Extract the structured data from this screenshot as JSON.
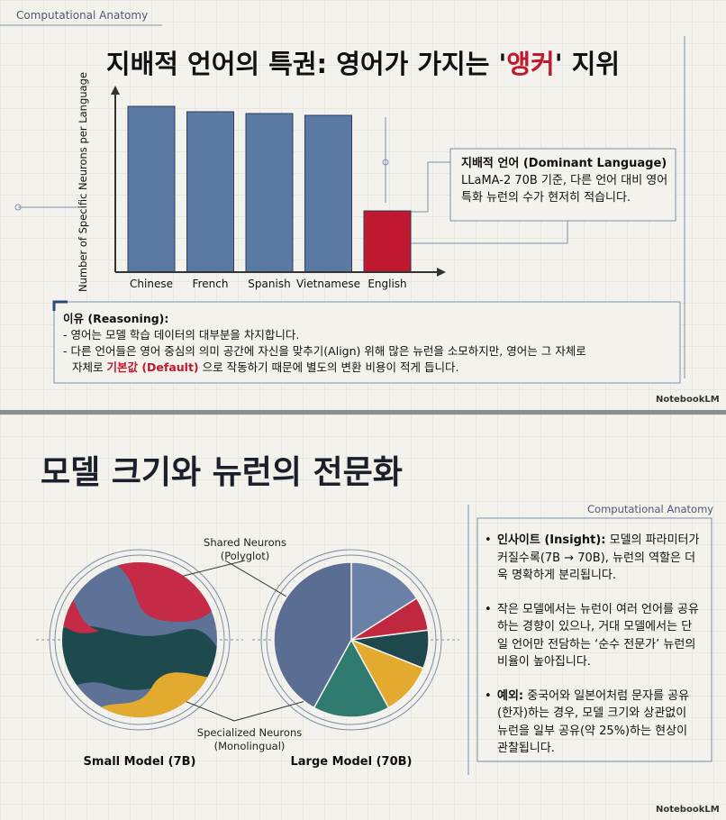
{
  "slide1": {
    "tag": "Computational Anatomy",
    "title": {
      "before": "지배적 언어의 특권: 영어가 가지는 '",
      "highlight": "앵커",
      "after": "' 지위"
    },
    "callout": {
      "heading": "지배적 언어 (Dominant Language)",
      "body": "LLaMA-2 70B 기준, 다른 언어 대비 영어 특화 뉴런의 수가 현저히 적습니다."
    },
    "reasoning": {
      "heading": "이유 (Reasoning):",
      "lines": [
        "- 영어는 모델 학습 데이터의 대부분을 차지합니다.",
        "- 다른 언어들은 영어 중심의 의미 공간에 자신을 맞추기(Align) 위해 많은 뉴런을 소모하지만, 영어는 그 자체로"
      ],
      "last": {
        "before": "자체로 ",
        "highlight": "기본값 (Default)",
        "after": " 으로 작동하기 때문에 별도의 변환 비용이 적게 듭니다."
      }
    },
    "brand": "NotebookLM"
  },
  "slide2": {
    "title": "모델 크기와 뉴런의 전문화",
    "tag": "Computational Anatomy",
    "shared_label": [
      "Shared Neurons",
      "(Polyglot)"
    ],
    "specialized_label": [
      "Specialized Neurons",
      "(Monolingual)"
    ],
    "small_caption": "Small Model (7B)",
    "insights": [
      {
        "label": "인사이트 (Insight):",
        "text": " 모델의 파라미터가 커질수록(7B → 70B), 뉴런의 역할은 더욱 명확하게 분리됩니다."
      },
      {
        "text": "작은 모델에서는 뉴런이 여러 언어를 공유하는 경향이 있으나, 거대 모델에서는 단일 언어만 전담하는 ‘순수 전문가’ 뉴런의 비율이 높아집니다."
      },
      {
        "label": "예외:",
        "text": " 중국어와 일본어처럼 문자를 공유(한자)하는 경우, 모델 크기와 상관없이 뉴런을 일부 공유(약 25%)하는 현상이 관찰됩니다."
      }
    ],
    "brand": "NotebookLM"
  },
  "chart_data": [
    {
      "type": "bar",
      "y_label": "Number of Specific Neurons per Language",
      "categories": [
        "Chinese",
        "French",
        "Spanish",
        "Vietnamese",
        "English"
      ],
      "values": [
        92,
        89,
        88,
        87,
        34
      ],
      "colors": [
        "#5b7aa3",
        "#5b7aa3",
        "#5b7aa3",
        "#5b7aa3",
        "#c0182f"
      ],
      "ylim": [
        0,
        100
      ]
    },
    {
      "type": "pie",
      "title": "Large Model (70B)",
      "categories": [
        null,
        null,
        null,
        null,
        null,
        null
      ],
      "values": [
        16,
        7,
        8,
        11,
        16,
        42
      ],
      "colors": [
        "#6a80a6",
        "#c0283f",
        "#1f484c",
        "#e2ab2f",
        "#2f7b6f",
        "#5a6d92"
      ]
    }
  ]
}
